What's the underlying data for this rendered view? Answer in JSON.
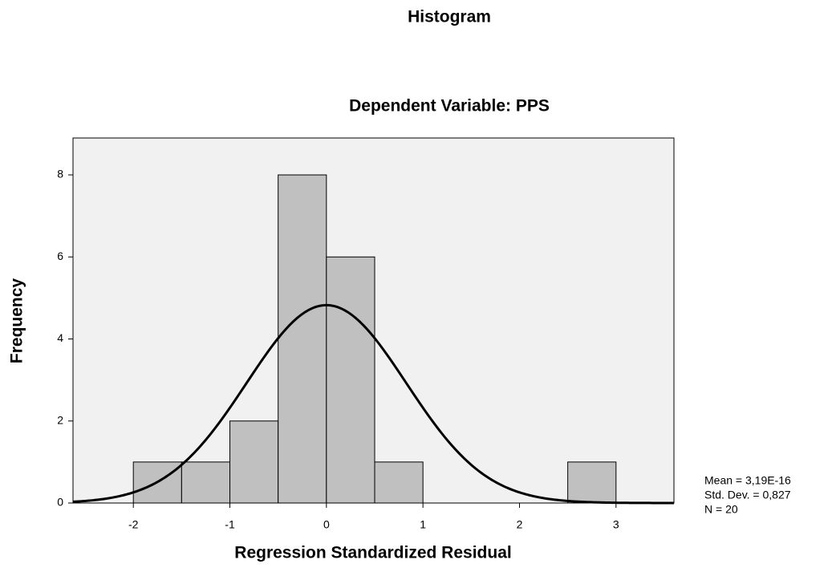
{
  "chart_data": {
    "type": "histogram",
    "title": "Histogram",
    "subtitle": "Dependent Variable: PPS",
    "x_label": "Regression Standardized Residual",
    "y_label": "Frequency",
    "bins": [
      -2,
      -1.5,
      -1,
      -0.5,
      0,
      0.5,
      1,
      1.5,
      2,
      2.5,
      3
    ],
    "values": [
      1,
      1,
      2,
      8,
      6,
      1,
      0,
      0,
      0,
      1
    ],
    "color": "#c0c0c0",
    "curve_color": "#000000",
    "xlim": [
      -2.625,
      3.6
    ],
    "xticks": [
      -2,
      -1,
      0,
      1,
      2,
      3
    ],
    "ylim": [
      0,
      8.9
    ],
    "yticks": [
      0,
      2,
      4,
      6,
      8
    ],
    "stats": {
      "mean": {
        "value": 3.19e-16,
        "label": "Mean = 3,19E-16"
      },
      "std_dev": {
        "value": 0.827,
        "label": "Std. Dev. = 0,827"
      },
      "n": {
        "value": 20,
        "label": "N = 20"
      }
    }
  }
}
